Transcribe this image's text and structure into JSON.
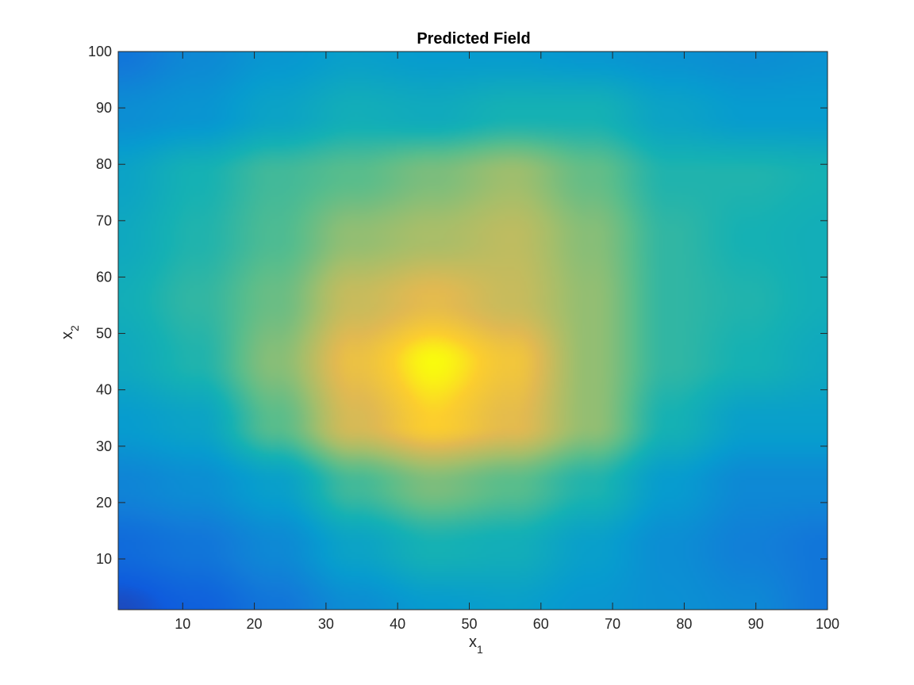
{
  "chart_data": {
    "type": "heatmap",
    "title": "Predicted Field",
    "xlabel": "x",
    "xlabel_subscript": "1",
    "ylabel": "x",
    "ylabel_subscript": "2",
    "xlim": [
      1,
      100
    ],
    "ylim": [
      1,
      100
    ],
    "xticks": [
      10,
      20,
      30,
      40,
      50,
      60,
      70,
      80,
      90,
      100
    ],
    "yticks": [
      10,
      20,
      30,
      40,
      50,
      60,
      70,
      80,
      90,
      100
    ],
    "colormap": "parula",
    "colorbar": false,
    "grid": false,
    "value_range": [
      0,
      1
    ],
    "z_grid_x": [
      1,
      12,
      23,
      34,
      45,
      56,
      67,
      78,
      89,
      100
    ],
    "z_grid_y": [
      1,
      12,
      23,
      34,
      45,
      56,
      67,
      78,
      89,
      100
    ],
    "z_values": [
      [
        0.08,
        0.14,
        0.22,
        0.32,
        0.38,
        0.4,
        0.36,
        0.33,
        0.3,
        0.22
      ],
      [
        0.18,
        0.22,
        0.3,
        0.42,
        0.5,
        0.48,
        0.4,
        0.32,
        0.26,
        0.22
      ],
      [
        0.28,
        0.32,
        0.4,
        0.58,
        0.68,
        0.62,
        0.52,
        0.38,
        0.3,
        0.3
      ],
      [
        0.38,
        0.42,
        0.62,
        0.85,
        0.95,
        0.88,
        0.72,
        0.5,
        0.4,
        0.4
      ],
      [
        0.45,
        0.52,
        0.7,
        0.9,
        1.0,
        0.92,
        0.72,
        0.55,
        0.5,
        0.45
      ],
      [
        0.48,
        0.55,
        0.65,
        0.82,
        0.88,
        0.82,
        0.72,
        0.55,
        0.52,
        0.48
      ],
      [
        0.45,
        0.52,
        0.6,
        0.72,
        0.76,
        0.8,
        0.7,
        0.55,
        0.5,
        0.48
      ],
      [
        0.42,
        0.5,
        0.58,
        0.62,
        0.68,
        0.74,
        0.64,
        0.52,
        0.52,
        0.5
      ],
      [
        0.32,
        0.35,
        0.42,
        0.48,
        0.46,
        0.5,
        0.5,
        0.42,
        0.38,
        0.38
      ],
      [
        0.22,
        0.3,
        0.36,
        0.4,
        0.38,
        0.38,
        0.36,
        0.34,
        0.32,
        0.34
      ]
    ]
  }
}
